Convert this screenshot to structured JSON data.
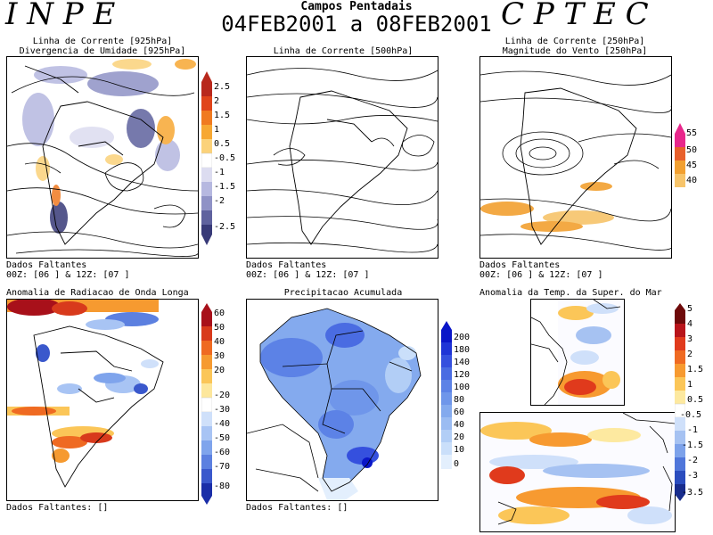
{
  "header": {
    "left_brand": "I N P E",
    "right_brand": "C P T E C",
    "title": "Campos Pentadais",
    "period": "04FEB2001 a 08FEB2001"
  },
  "panels": {
    "p1": {
      "title_line1": "Linha de Corrente [925hPa]",
      "title_line2": "Divergencia de Umidade [925hPa]",
      "missing_line1": "Dados Faltantes",
      "missing_line2": "00Z: [06 ] & 12Z: [07 ]",
      "colorbar": [
        "2.5",
        "2",
        "1.5",
        "1",
        "0.5",
        "-0.5",
        "-1",
        "-1.5",
        "-2",
        "-2.5"
      ],
      "colors": [
        "#b8281c",
        "#e0441a",
        "#f07a20",
        "#f7a833",
        "#fbd27a",
        "#ffffff",
        "#dcdcf0",
        "#b6b8e0",
        "#8f92c6",
        "#5f629e",
        "#383a78"
      ]
    },
    "p2": {
      "title_line1": "Linha de Corrente [500hPa]",
      "missing_line1": "Dados Faltantes",
      "missing_line2": "00Z: [06 ] & 12Z: [07 ]"
    },
    "p3": {
      "title_line1": "Linha de Corrente [250hPa]",
      "title_line2": "Magnitude do Vento [250hPa]",
      "missing_line1": "Dados Faltantes",
      "missing_line2": "00Z: [06 ] & 12Z: [07 ]",
      "colorbar": [
        "55",
        "50",
        "45",
        "40"
      ],
      "colors": [
        "#e8288c",
        "#e8602c",
        "#f2a030",
        "#f7c46a"
      ]
    },
    "p4": {
      "title_line1": "Anomalia de Radiacao de Onda Longa",
      "missing": "Dados Faltantes: []",
      "colorbar": [
        "60",
        "50",
        "40",
        "30",
        "20",
        "-20",
        "-30",
        "-40",
        "-50",
        "-60",
        "-70",
        "-80"
      ],
      "colors": [
        "#a8101a",
        "#d83a1c",
        "#ef6a22",
        "#f69a30",
        "#fbc658",
        "#fde79c",
        "#ffffff",
        "#cfe0fa",
        "#a8c4f4",
        "#7fa4ec",
        "#5c80e0",
        "#3a58cc",
        "#1a2ea8"
      ]
    },
    "p5": {
      "title_line1": "Precipitacao Acumulada",
      "missing": "Dados Faltantes: []",
      "colorbar": [
        "200",
        "180",
        "140",
        "120",
        "100",
        "80",
        "60",
        "40",
        "20",
        "10",
        "0"
      ],
      "colors": [
        "#0a16c8",
        "#1f34d6",
        "#3550de",
        "#4a6ce2",
        "#5c82e6",
        "#6f96ea",
        "#84aaee",
        "#9bbcf2",
        "#b2cef6",
        "#cadffa",
        "#e3effd"
      ]
    },
    "p6": {
      "title_line1": "Anomalia da Temp. da Super. do Mar",
      "colorbar": [
        "5",
        "4",
        "3",
        "2",
        "1.5",
        "1",
        "0.5",
        "-0.5",
        "-1",
        "-1.5",
        "-2",
        "-3",
        "-3.5"
      ],
      "colors": [
        "#6e0a0a",
        "#b8141a",
        "#e03a1c",
        "#ef6a22",
        "#f79a30",
        "#fbc658",
        "#fde9a0",
        "#ffffff",
        "#cfe0fa",
        "#a6c2f2",
        "#7da2ea",
        "#4f76da",
        "#2a4cbe",
        "#182c8c"
      ]
    }
  }
}
